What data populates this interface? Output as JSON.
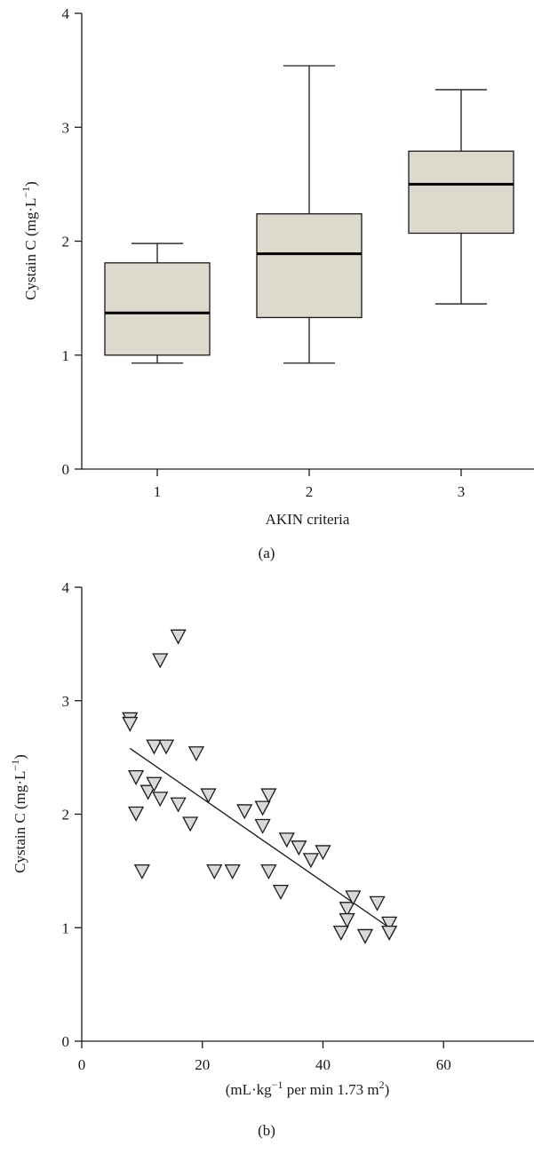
{
  "colors": {
    "box_fill": "#ddd9cc",
    "marker_fill": "#d9d9d9",
    "ink": "#1a1a1a"
  },
  "chart_data": [
    {
      "type": "box",
      "panel_label": "(a)",
      "xlabel": "AKIN criteria",
      "ylabel": "Cystain C (mg·L",
      "ylabel_sup": "−1",
      "ylabel_end": ")",
      "ylim": [
        0,
        4
      ],
      "yticks": [
        "0",
        "1",
        "2",
        "3",
        "4"
      ],
      "categories": [
        "1",
        "2",
        "3"
      ],
      "boxes": [
        {
          "category": "1",
          "min": 0.93,
          "q1": 1.0,
          "median": 1.37,
          "q3": 1.81,
          "max": 1.98
        },
        {
          "category": "2",
          "min": 0.93,
          "q1": 1.33,
          "median": 1.89,
          "q3": 2.24,
          "max": 3.54
        },
        {
          "category": "3",
          "min": 1.45,
          "q1": 2.07,
          "median": 2.5,
          "q3": 2.79,
          "max": 3.33
        }
      ],
      "grid": false
    },
    {
      "type": "scatter",
      "panel_label": "(b)",
      "xlabel": "(mL·kg",
      "xlabel_sup1": "−1",
      "xlabel_mid": " per min 1.73 m",
      "xlabel_sup2": "2",
      "xlabel_end": ")",
      "ylabel": "Cystain C (mg·L",
      "ylabel_sup": "−1",
      "ylabel_end": ")",
      "xlim": [
        0,
        75
      ],
      "ylim": [
        0,
        4
      ],
      "xticks": [
        "0",
        "20",
        "40",
        "60"
      ],
      "yticks": [
        "0",
        "1",
        "2",
        "3",
        "4"
      ],
      "marker": "down-triangle",
      "points": [
        {
          "x": 8,
          "y": 2.82
        },
        {
          "x": 8,
          "y": 2.78
        },
        {
          "x": 9,
          "y": 2.31
        },
        {
          "x": 9,
          "y": 1.99
        },
        {
          "x": 10,
          "y": 1.48
        },
        {
          "x": 11,
          "y": 2.18
        },
        {
          "x": 12,
          "y": 2.58
        },
        {
          "x": 12,
          "y": 2.25
        },
        {
          "x": 13,
          "y": 3.34
        },
        {
          "x": 13,
          "y": 2.12
        },
        {
          "x": 14,
          "y": 2.58
        },
        {
          "x": 16,
          "y": 3.55
        },
        {
          "x": 16,
          "y": 2.07
        },
        {
          "x": 18,
          "y": 1.9
        },
        {
          "x": 19,
          "y": 2.52
        },
        {
          "x": 21,
          "y": 2.15
        },
        {
          "x": 22,
          "y": 1.48
        },
        {
          "x": 25,
          "y": 1.48
        },
        {
          "x": 27,
          "y": 2.01
        },
        {
          "x": 30,
          "y": 2.04
        },
        {
          "x": 30,
          "y": 1.88
        },
        {
          "x": 31,
          "y": 2.15
        },
        {
          "x": 31,
          "y": 1.48
        },
        {
          "x": 33,
          "y": 1.3
        },
        {
          "x": 34,
          "y": 1.76
        },
        {
          "x": 36,
          "y": 1.69
        },
        {
          "x": 38,
          "y": 1.58
        },
        {
          "x": 40,
          "y": 1.65
        },
        {
          "x": 43,
          "y": 0.94
        },
        {
          "x": 44,
          "y": 1.15
        },
        {
          "x": 44,
          "y": 1.05
        },
        {
          "x": 45,
          "y": 1.25
        },
        {
          "x": 47,
          "y": 0.91
        },
        {
          "x": 49,
          "y": 1.2
        },
        {
          "x": 51,
          "y": 1.02
        },
        {
          "x": 51,
          "y": 0.94
        }
      ],
      "fit_line": {
        "x": [
          8,
          51
        ],
        "y": [
          2.58,
          1.0
        ]
      },
      "grid": false
    }
  ]
}
